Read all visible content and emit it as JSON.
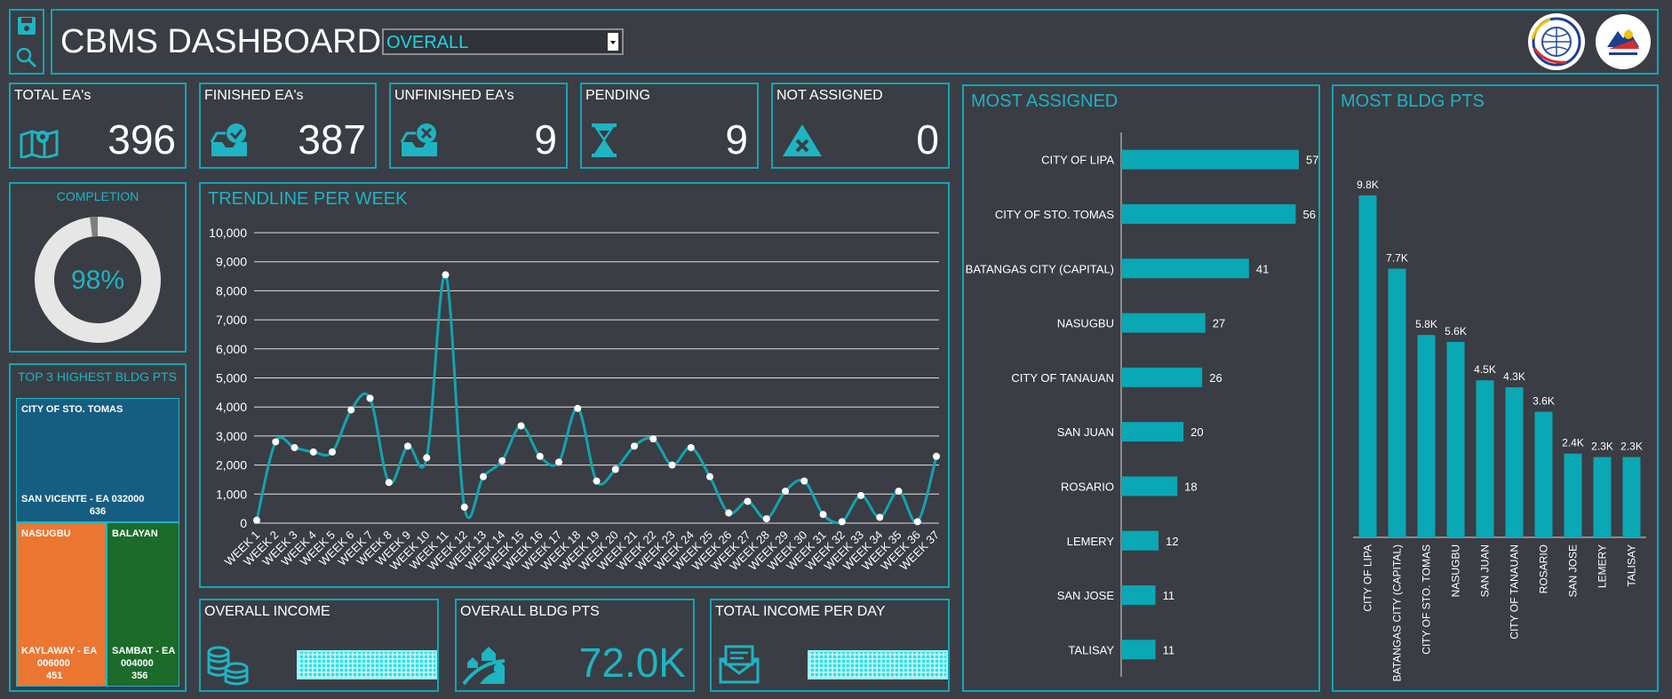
{
  "header": {
    "title": "CBMS DASHBOARD",
    "dropdown_value": "OVERALL"
  },
  "kpis": [
    {
      "title": "TOTAL EA's",
      "value": "396",
      "icon": "map-pin-icon"
    },
    {
      "title": "FINISHED EA's",
      "value": "387",
      "icon": "inbox-check-icon"
    },
    {
      "title": "UNFINISHED EA's",
      "value": "9",
      "icon": "inbox-x-icon"
    },
    {
      "title": "PENDING",
      "value": "9",
      "icon": "hourglass-icon"
    },
    {
      "title": "NOT ASSIGNED",
      "value": "0",
      "icon": "warning-x-icon"
    }
  ],
  "completion": {
    "title": "COMPLETION",
    "label": "98%",
    "fraction": 0.98
  },
  "top3": {
    "title": "TOP 3 HIGHEST BLDG PTS",
    "cells": [
      {
        "name": "CITY OF STO. TOMAS",
        "detail1": "SAN VICENTE - EA 032000",
        "detail2": "636",
        "color": "#155e82"
      },
      {
        "name": "NASUGBU",
        "detail1": "KAYLAWAY - EA",
        "detail2": "006000",
        "detail3": "451",
        "color": "#ea7632"
      },
      {
        "name": "BALAYAN",
        "detail1": "SAMBAT - EA",
        "detail2": "004000",
        "detail3": "356",
        "color": "#1c6b2b"
      }
    ]
  },
  "trend": {
    "title": "TRENDLINE PER WEEK",
    "chart_data": {
      "type": "line",
      "ylim": [
        0,
        10000
      ],
      "yticks": [
        "0",
        "1,000",
        "2,000",
        "3,000",
        "4,000",
        "5,000",
        "6,000",
        "7,000",
        "8,000",
        "9,000",
        "10,000"
      ],
      "categories": [
        "WEEK 1",
        "WEEK 2",
        "WEEK 3",
        "WEEK 4",
        "WEEK 5",
        "WEEK 6",
        "WEEK 7",
        "WEEK 8",
        "WEEK 9",
        "WEEK 10",
        "WEEK 11",
        "WEEK 12",
        "WEEK 13",
        "WEEK 14",
        "WEEK 15",
        "WEEK 16",
        "WEEK 17",
        "WEEK 18",
        "WEEK 19",
        "WEEK 20",
        "WEEK 21",
        "WEEK 22",
        "WEEK 23",
        "WEEK 24",
        "WEEK 25",
        "WEEK 26",
        "WEEK 27",
        "WEEK 28",
        "WEEK 29",
        "WEEK 30",
        "WEEK 31",
        "WEEK 32",
        "WEEK 33",
        "WEEK 34",
        "WEEK 35",
        "WEEK 36",
        "WEEK 37"
      ],
      "values": [
        100,
        2800,
        2600,
        2450,
        2450,
        3900,
        4300,
        1400,
        2650,
        2250,
        8550,
        550,
        1600,
        2150,
        3350,
        2300,
        2100,
        3950,
        1450,
        1850,
        2650,
        2900,
        2000,
        2600,
        1600,
        350,
        750,
        150,
        1100,
        1450,
        300,
        50,
        950,
        200,
        1100,
        50,
        2300
      ],
      "color": "#13a3b0"
    }
  },
  "most_assigned": {
    "title": "MOST ASSIGNED",
    "chart_data": {
      "type": "bar",
      "orientation": "horizontal",
      "categories": [
        "CITY OF LIPA",
        "CITY OF STO. TOMAS",
        "BATANGAS CITY (CAPITAL)",
        "NASUGBU",
        "CITY OF TANAUAN",
        "SAN JUAN",
        "ROSARIO",
        "LEMERY",
        "SAN JOSE",
        "TALISAY"
      ],
      "values": [
        57,
        56,
        41,
        27,
        26,
        20,
        18,
        12,
        11,
        11
      ],
      "color": "#0aa7b4"
    }
  },
  "most_bldg": {
    "title": "MOST BLDG PTS",
    "chart_data": {
      "type": "bar",
      "categories": [
        "CITY OF LIPA",
        "BATANGAS CITY (CAPITAL)",
        "CITY OF STO. TOMAS",
        "NASUGBU",
        "SAN JUAN",
        "CITY OF TANAUAN",
        "ROSARIO",
        "SAN JOSE",
        "LEMERY",
        "TALISAY"
      ],
      "values": [
        9800,
        7700,
        5800,
        5600,
        4500,
        4300,
        3600,
        2400,
        2300,
        2300
      ],
      "labels": [
        "9.8K",
        "7.7K",
        "5.8K",
        "5.6K",
        "4.5K",
        "4.3K",
        "3.6K",
        "2.4K",
        "2.3K",
        "2.3K"
      ],
      "color": "#0aa7b4"
    }
  },
  "bottom": {
    "income_title": "OVERALL INCOME",
    "bldg_title": "OVERALL BLDG PTS",
    "bldg_value": "72.0K",
    "per_day_title": "TOTAL INCOME PER DAY"
  }
}
